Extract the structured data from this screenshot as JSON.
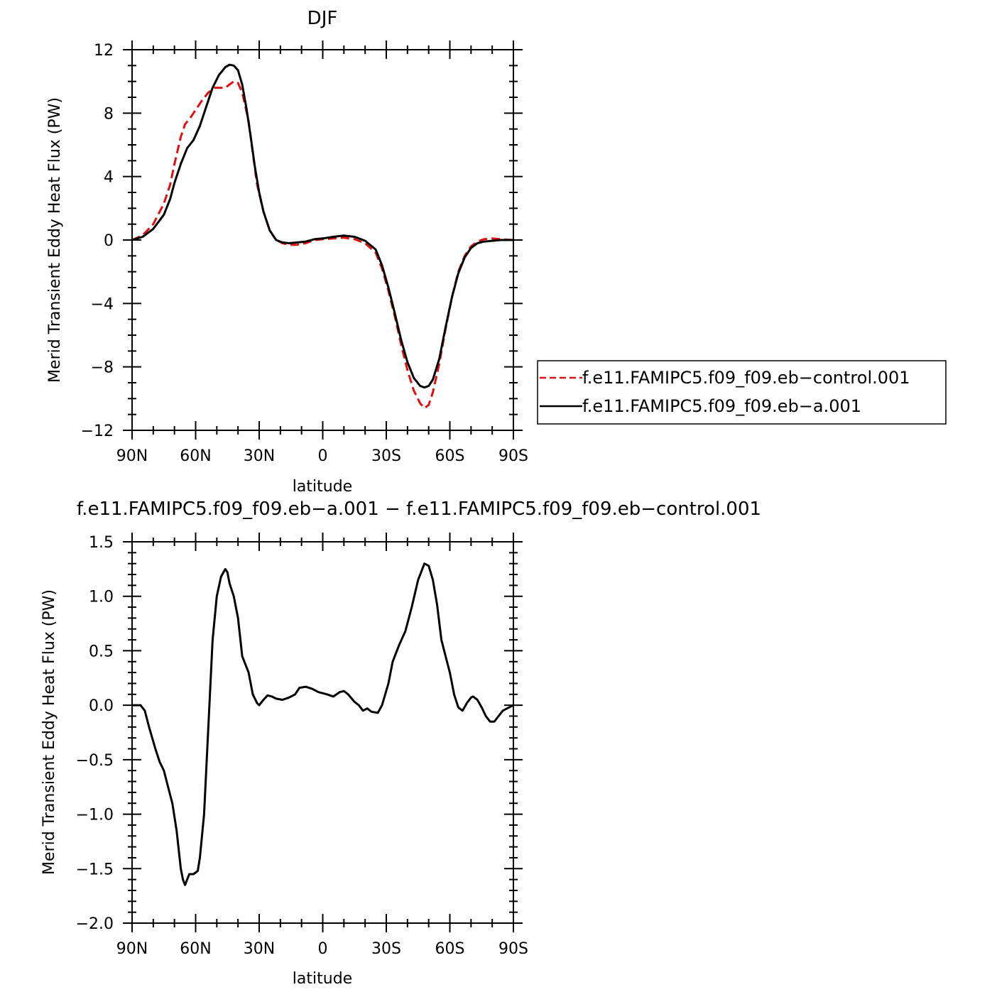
{
  "chart_data": [
    {
      "type": "line",
      "title": "DJF",
      "xlabel": "latitude",
      "ylabel": "Merid Transient Eddy Heat Flux (PW)",
      "xlim": [
        -90,
        90
      ],
      "ylim": [
        -12,
        12
      ],
      "x_tick_labels": [
        "90N",
        "60N",
        "30N",
        "0",
        "30S",
        "60S",
        "90S"
      ],
      "y_tick_labels": [
        "12",
        "8",
        "4",
        "0",
        "−4",
        "−8",
        "−12"
      ],
      "legend_placement": "right",
      "series": [
        {
          "name": "f.e11.FAMIPC5.f09_f09.eb−control.001",
          "color": "#e01010",
          "style": "dashed",
          "points": [
            [
              -90,
              0
            ],
            [
              -85,
              0.3
            ],
            [
              -80,
              1.0
            ],
            [
              -75,
              2.3
            ],
            [
              -72,
              3.5
            ],
            [
              -70,
              4.8
            ],
            [
              -67,
              6.5
            ],
            [
              -65,
              7.3
            ],
            [
              -62,
              7.8
            ],
            [
              -60,
              8.2
            ],
            [
              -57,
              8.8
            ],
            [
              -54,
              9.3
            ],
            [
              -51,
              9.6
            ],
            [
              -48,
              9.6
            ],
            [
              -46,
              9.6
            ],
            [
              -44,
              9.8
            ],
            [
              -42,
              10.0
            ],
            [
              -40,
              9.9
            ],
            [
              -38,
              9.3
            ],
            [
              -35,
              7.5
            ],
            [
              -33,
              5.5
            ],
            [
              -31,
              3.5
            ],
            [
              -28,
              1.8
            ],
            [
              -25,
              0.6
            ],
            [
              -22,
              0
            ],
            [
              -19,
              -0.2
            ],
            [
              -16,
              -0.3
            ],
            [
              -12,
              -0.3
            ],
            [
              -8,
              -0.2
            ],
            [
              -4,
              0
            ],
            [
              0,
              0.05
            ],
            [
              5,
              0.1
            ],
            [
              10,
              0.15
            ],
            [
              15,
              0.05
            ],
            [
              20,
              -0.2
            ],
            [
              25,
              -0.8
            ],
            [
              28,
              -1.8
            ],
            [
              31,
              -3.2
            ],
            [
              34,
              -4.8
            ],
            [
              37,
              -6.6
            ],
            [
              40,
              -8.2
            ],
            [
              43,
              -9.5
            ],
            [
              46,
              -10.3
            ],
            [
              48,
              -10.6
            ],
            [
              50,
              -10.4
            ],
            [
              52,
              -9.6
            ],
            [
              55,
              -7.8
            ],
            [
              58,
              -5.6
            ],
            [
              61,
              -3.6
            ],
            [
              64,
              -2.0
            ],
            [
              67,
              -1.0
            ],
            [
              70,
              -0.4
            ],
            [
              73,
              -0.1
            ],
            [
              76,
              0.05
            ],
            [
              80,
              0.1
            ],
            [
              84,
              0.05
            ],
            [
              90,
              0
            ]
          ]
        },
        {
          "name": "f.e11.FAMIPC5.f09_f09.eb−a.001",
          "color": "#000000",
          "style": "solid",
          "points": [
            [
              -90,
              0
            ],
            [
              -85,
              0.2
            ],
            [
              -80,
              0.7
            ],
            [
              -75,
              1.6
            ],
            [
              -72,
              2.6
            ],
            [
              -70,
              3.6
            ],
            [
              -67,
              4.8
            ],
            [
              -64,
              5.8
            ],
            [
              -61,
              6.3
            ],
            [
              -58,
              7.2
            ],
            [
              -55,
              8.4
            ],
            [
              -52,
              9.6
            ],
            [
              -49,
              10.4
            ],
            [
              -46,
              10.9
            ],
            [
              -44,
              11.05
            ],
            [
              -42,
              11.0
            ],
            [
              -40,
              10.7
            ],
            [
              -38,
              9.8
            ],
            [
              -36,
              8.3
            ],
            [
              -34,
              6.5
            ],
            [
              -32,
              4.6
            ],
            [
              -30,
              3.0
            ],
            [
              -28,
              1.8
            ],
            [
              -25,
              0.6
            ],
            [
              -22,
              0
            ],
            [
              -19,
              -0.15
            ],
            [
              -16,
              -0.2
            ],
            [
              -12,
              -0.15
            ],
            [
              -8,
              -0.1
            ],
            [
              -4,
              0.05
            ],
            [
              0,
              0.1
            ],
            [
              5,
              0.2
            ],
            [
              10,
              0.28
            ],
            [
              15,
              0.2
            ],
            [
              20,
              -0.05
            ],
            [
              25,
              -0.6
            ],
            [
              28,
              -1.6
            ],
            [
              31,
              -3.0
            ],
            [
              34,
              -4.6
            ],
            [
              37,
              -6.3
            ],
            [
              40,
              -7.7
            ],
            [
              43,
              -8.7
            ],
            [
              46,
              -9.2
            ],
            [
              48,
              -9.3
            ],
            [
              50,
              -9.2
            ],
            [
              52,
              -8.8
            ],
            [
              55,
              -7.5
            ],
            [
              58,
              -5.5
            ],
            [
              61,
              -3.6
            ],
            [
              64,
              -2.1
            ],
            [
              67,
              -1.1
            ],
            [
              70,
              -0.5
            ],
            [
              73,
              -0.2
            ],
            [
              76,
              -0.1
            ],
            [
              80,
              -0.05
            ],
            [
              84,
              0
            ],
            [
              90,
              0
            ]
          ]
        }
      ]
    },
    {
      "type": "line",
      "title": "f.e11.FAMIPC5.f09_f09.eb−a.001  −  f.e11.FAMIPC5.f09_f09.eb−control.001",
      "xlabel": "latitude",
      "ylabel": "Merid Transient Eddy Heat Flux (PW)",
      "xlim": [
        -90,
        90
      ],
      "ylim": [
        -2.0,
        1.5
      ],
      "x_tick_labels": [
        "90N",
        "60N",
        "30N",
        "0",
        "30S",
        "60S",
        "90S"
      ],
      "y_tick_labels": [
        "1.5",
        "1.0",
        "0.5",
        "0.0",
        "−0.5",
        "−1.0",
        "−1.5",
        "−2.0"
      ],
      "series": [
        {
          "color": "#000000",
          "style": "solid",
          "points": [
            [
              -90,
              0
            ],
            [
              -86,
              0
            ],
            [
              -84,
              -0.05
            ],
            [
              -82,
              -0.2
            ],
            [
              -79,
              -0.4
            ],
            [
              -77,
              -0.52
            ],
            [
              -75,
              -0.6
            ],
            [
              -73,
              -0.75
            ],
            [
              -71,
              -0.9
            ],
            [
              -69,
              -1.15
            ],
            [
              -67,
              -1.5
            ],
            [
              -66,
              -1.6
            ],
            [
              -65,
              -1.65
            ],
            [
              -64,
              -1.6
            ],
            [
              -63,
              -1.55
            ],
            [
              -62,
              -1.55
            ],
            [
              -61,
              -1.55
            ],
            [
              -59,
              -1.52
            ],
            [
              -58,
              -1.4
            ],
            [
              -56,
              -1.0
            ],
            [
              -54,
              -0.2
            ],
            [
              -52,
              0.6
            ],
            [
              -50,
              1.0
            ],
            [
              -48,
              1.18
            ],
            [
              -46,
              1.25
            ],
            [
              -45,
              1.22
            ],
            [
              -44,
              1.12
            ],
            [
              -42,
              1.0
            ],
            [
              -40,
              0.8
            ],
            [
              -38,
              0.45
            ],
            [
              -36,
              0.35
            ],
            [
              -35,
              0.3
            ],
            [
              -33,
              0.1
            ],
            [
              -31,
              0.02
            ],
            [
              -30,
              0.0
            ],
            [
              -28,
              0.05
            ],
            [
              -26,
              0.09
            ],
            [
              -24,
              0.08
            ],
            [
              -22,
              0.06
            ],
            [
              -19,
              0.05
            ],
            [
              -16,
              0.07
            ],
            [
              -13,
              0.1
            ],
            [
              -11,
              0.16
            ],
            [
              -8,
              0.17
            ],
            [
              -5,
              0.15
            ],
            [
              -2,
              0.12
            ],
            [
              2,
              0.1
            ],
            [
              5,
              0.08
            ],
            [
              8,
              0.12
            ],
            [
              10,
              0.13
            ],
            [
              12,
              0.1
            ],
            [
              15,
              0.03
            ],
            [
              17,
              0.0
            ],
            [
              19,
              -0.05
            ],
            [
              21,
              -0.03
            ],
            [
              23,
              -0.06
            ],
            [
              26,
              -0.07
            ],
            [
              28,
              0.0
            ],
            [
              31,
              0.2
            ],
            [
              33,
              0.4
            ],
            [
              36,
              0.55
            ],
            [
              39,
              0.68
            ],
            [
              42,
              0.9
            ],
            [
              45,
              1.15
            ],
            [
              47,
              1.25
            ],
            [
              48,
              1.3
            ],
            [
              50,
              1.28
            ],
            [
              52,
              1.15
            ],
            [
              54,
              0.92
            ],
            [
              56,
              0.6
            ],
            [
              58,
              0.45
            ],
            [
              60,
              0.3
            ],
            [
              62,
              0.1
            ],
            [
              64,
              -0.02
            ],
            [
              66,
              -0.05
            ],
            [
              68,
              0.02
            ],
            [
              70,
              0.07
            ],
            [
              71,
              0.08
            ],
            [
              73,
              0.05
            ],
            [
              75,
              -0.02
            ],
            [
              77,
              -0.1
            ],
            [
              79,
              -0.15
            ],
            [
              81,
              -0.15
            ],
            [
              83,
              -0.1
            ],
            [
              85,
              -0.05
            ],
            [
              87,
              -0.03
            ],
            [
              90,
              0
            ]
          ]
        }
      ]
    }
  ]
}
